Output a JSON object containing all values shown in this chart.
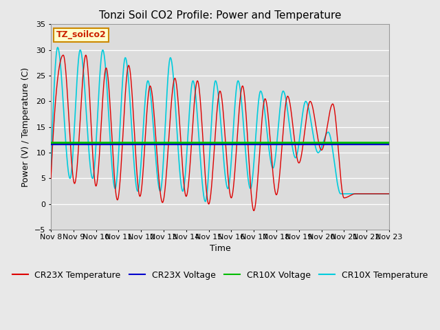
{
  "title": "Tonzi Soil CO2 Profile: Power and Temperature",
  "xlabel": "Time",
  "ylabel": "Power (V) / Temperature (C)",
  "ylim": [
    -5,
    35
  ],
  "yticks": [
    -5,
    0,
    5,
    10,
    15,
    20,
    25,
    30,
    35
  ],
  "xtick_labels": [
    "Nov 8",
    "Nov 9",
    "Nov 10",
    "Nov 11",
    "Nov 12",
    "Nov 13",
    "Nov 14",
    "Nov 15",
    "Nov 16",
    "Nov 17",
    "Nov 18",
    "Nov 19",
    "Nov 20",
    "Nov 21",
    "Nov 22",
    "Nov 23"
  ],
  "cr23x_voltage_value": 11.6,
  "cr10x_voltage_value": 11.9,
  "bg_color": "#e8e8e8",
  "plot_bg_color": "#dcdcdc",
  "cr23x_temp_color": "#dd0000",
  "cr23x_volt_color": "#0000cc",
  "cr10x_volt_color": "#00bb00",
  "cr10x_temp_color": "#00ccdd",
  "title_fontsize": 11,
  "label_fontsize": 9,
  "tick_fontsize": 8,
  "legend_fontsize": 9,
  "watermark_text": "TZ_soilco2",
  "watermark_color": "#cc2200",
  "watermark_bg": "#ffffcc",
  "watermark_border": "#cc8800",
  "peak_times_cr23x": [
    0.55,
    1.55,
    2.45,
    3.45,
    4.4,
    5.5,
    6.5,
    7.5,
    8.5,
    9.5,
    10.5,
    11.5,
    12.5,
    13.5
  ],
  "peak_heights_cr23x": [
    29,
    29,
    26.5,
    27,
    23,
    24.5,
    24,
    22,
    23,
    20.5,
    21,
    20,
    19.5,
    2
  ],
  "valley_times_cr23x": [
    0.0,
    1.05,
    2.0,
    2.95,
    3.95,
    4.95,
    6.0,
    7.0,
    8.0,
    9.0,
    10.0,
    11.0,
    12.0,
    13.0,
    15.0
  ],
  "valley_heights_cr23x": [
    5,
    4,
    3.5,
    0.8,
    1.5,
    0.3,
    1.5,
    0.0,
    1.2,
    -1.3,
    1.8,
    8.0,
    10.5,
    1.2,
    2
  ],
  "peak_times_cr10x": [
    0.3,
    1.3,
    2.3,
    3.3,
    4.3,
    5.3,
    6.3,
    7.3,
    8.3,
    9.3,
    10.3,
    11.3,
    12.3,
    13.3
  ],
  "peak_heights_cr10x": [
    30.5,
    30,
    30,
    28.5,
    24,
    28.5,
    24,
    24,
    24,
    22,
    22,
    20,
    14,
    2
  ],
  "valley_times_cr10x": [
    0.0,
    0.85,
    1.85,
    2.85,
    3.85,
    4.85,
    5.85,
    6.85,
    7.85,
    8.85,
    9.85,
    10.85,
    11.85,
    12.85,
    15.0
  ],
  "valley_heights_cr10x": [
    6.5,
    5,
    5,
    3,
    2.5,
    2.5,
    2.5,
    0.5,
    3,
    3,
    7,
    9,
    10,
    2,
    2
  ]
}
